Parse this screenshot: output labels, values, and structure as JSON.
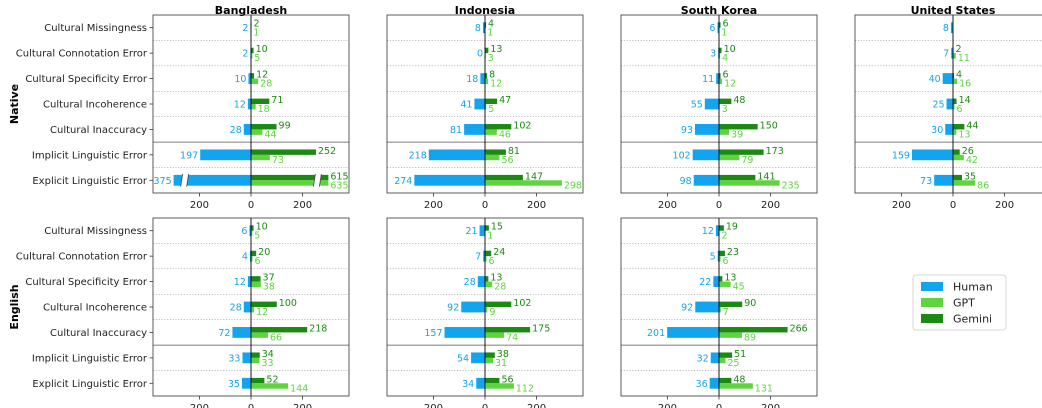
{
  "chart_data": {
    "type": "bar",
    "orientation": "horizontal",
    "layout": "grid of diverging bar panels",
    "columns": [
      "Bangladesh",
      "Indonesia",
      "South Korea",
      "United States"
    ],
    "rows": [
      "Native",
      "English"
    ],
    "categories": [
      "Cultural Missingness",
      "Cultural Connotation Error",
      "Cultural Specificity Error",
      "Cultural Incoherence",
      "Cultural Inaccuracy",
      "Implicit Linguistic Error",
      "Explicit Linguistic Error"
    ],
    "xlim": [
      -380,
      380
    ],
    "xticks": [
      200,
      0,
      200
    ],
    "series_names": [
      "Human",
      "GPT",
      "Gemini"
    ],
    "colors": {
      "Human": "#13a4f0",
      "GPT": "#5fd43f",
      "Gemini": "#1c8a12"
    },
    "legend_position": "right, lower row",
    "panels": [
      {
        "row": "Native",
        "column": "Bangladesh",
        "human": [
          2,
          2,
          10,
          12,
          28,
          197,
          375
        ],
        "gpt": [
          1,
          5,
          28,
          18,
          44,
          73,
          635
        ],
        "gemini": [
          2,
          10,
          12,
          71,
          99,
          252,
          615
        ],
        "axis_break": true
      },
      {
        "row": "Native",
        "column": "Indonesia",
        "human": [
          8,
          0,
          18,
          41,
          81,
          218,
          274
        ],
        "gpt": [
          1,
          3,
          12,
          5,
          46,
          56,
          298
        ],
        "gemini": [
          4,
          13,
          8,
          47,
          102,
          81,
          147
        ]
      },
      {
        "row": "Native",
        "column": "South Korea",
        "human": [
          6,
          3,
          11,
          55,
          93,
          102,
          98
        ],
        "gpt": [
          1,
          4,
          12,
          3,
          39,
          79,
          235
        ],
        "gemini": [
          6,
          10,
          6,
          48,
          150,
          173,
          141
        ]
      },
      {
        "row": "Native",
        "column": "United States",
        "human": [
          8,
          7,
          40,
          25,
          30,
          159,
          73
        ],
        "gpt": [
          null,
          11,
          16,
          6,
          13,
          42,
          86
        ],
        "gemini": [
          null,
          2,
          4,
          14,
          44,
          26,
          35
        ]
      },
      {
        "row": "English",
        "column": "Bangladesh",
        "human": [
          6,
          4,
          12,
          28,
          72,
          33,
          35
        ],
        "gpt": [
          5,
          6,
          38,
          12,
          66,
          33,
          144
        ],
        "gemini": [
          10,
          20,
          37,
          100,
          218,
          34,
          52
        ]
      },
      {
        "row": "English",
        "column": "Indonesia",
        "human": [
          21,
          7,
          28,
          92,
          157,
          54,
          34
        ],
        "gpt": [
          1,
          6,
          28,
          9,
          74,
          31,
          112
        ],
        "gemini": [
          15,
          24,
          13,
          102,
          175,
          38,
          56
        ]
      },
      {
        "row": "English",
        "column": "South Korea",
        "human": [
          12,
          5,
          22,
          92,
          201,
          32,
          36
        ],
        "gpt": [
          2,
          6,
          45,
          7,
          89,
          25,
          131
        ],
        "gemini": [
          19,
          23,
          13,
          90,
          266,
          51,
          48
        ]
      }
    ]
  }
}
